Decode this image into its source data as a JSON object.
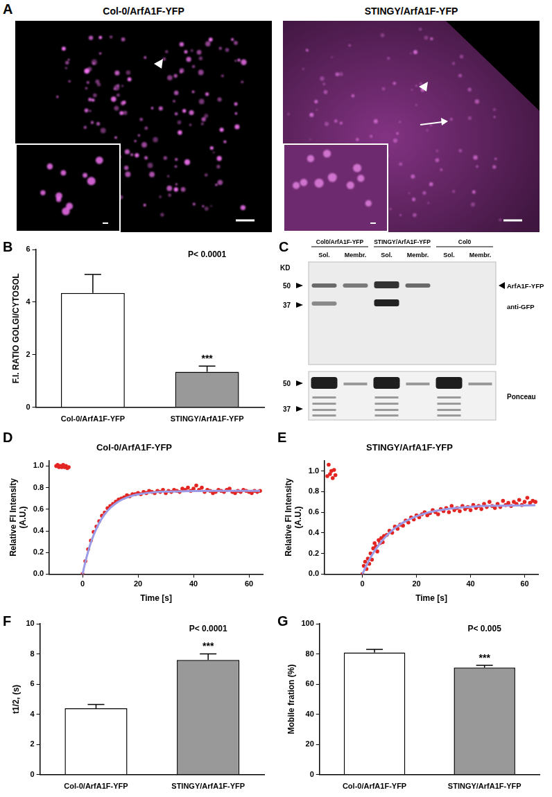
{
  "panel_A": {
    "panel_label": "A",
    "images": [
      {
        "title": "Col-0/ArfA1F-YFP"
      },
      {
        "title": "STINGY/ArfA1F-YFP"
      }
    ]
  },
  "panel_C": {
    "panel_label": "C",
    "groups": [
      "Col0/ArfA1F-YFP",
      "STINGY/ArfA1F-YFP",
      "Col0"
    ],
    "lanes": [
      "Sol.",
      "Membr.",
      "Sol.",
      "Membr.",
      "Sol.",
      "Membr."
    ],
    "unit": "KD",
    "markers": [
      50,
      37
    ],
    "band_labels": [
      "ArfA1F-YFP",
      "anti-GFP"
    ],
    "stain": "Ponceau"
  },
  "chart_data": [
    {
      "panel_label": "B",
      "type": "bar",
      "categories": [
        "Col-0/ArfA1F-YFP",
        "STINGY/ArfA1F-YFP"
      ],
      "values": [
        4.35,
        1.35
      ],
      "errors": [
        0.7,
        0.22
      ],
      "colors": [
        "#ffffff",
        "#999999"
      ],
      "y_label": "F.I. RATIO GOLGI/CYTOSOL",
      "ylim": [
        0,
        6
      ],
      "yticks": [
        0,
        2,
        4,
        6
      ],
      "grid": false,
      "annotations": [
        "P< 0.0001",
        "***"
      ]
    },
    {
      "panel_label": "D",
      "type": "scatter",
      "title": "Col-0/ArfA1F-YFP",
      "x_label": "Time [s]",
      "y_label": [
        "Relative FI Intensity",
        "(A.U.)"
      ],
      "xlim": [
        -12,
        65
      ],
      "xticks": [
        0,
        20,
        40,
        60
      ],
      "ylim": [
        0,
        1.05
      ],
      "yticks": [
        {
          "value": 0,
          "label": "0.0"
        },
        0.2,
        0.4,
        0.6,
        0.8,
        {
          "value": 1,
          "label": "1.0"
        }
      ],
      "grid": false,
      "series": [
        {
          "type": "scatter",
          "marker": "circle",
          "color": "#e32522",
          "x": [
            -9.5,
            -9,
            -8.5,
            -8,
            -7.5,
            -7,
            -6.5,
            -6,
            -5.5,
            -5,
            0,
            1,
            2,
            3,
            4,
            5,
            6,
            7,
            8,
            9,
            10,
            11,
            12,
            13,
            14,
            15,
            16,
            17,
            18,
            19,
            20,
            21,
            22,
            23,
            24,
            25,
            26,
            27,
            28,
            29,
            30,
            31,
            32,
            33,
            34,
            35,
            36,
            37,
            38,
            39,
            40,
            41,
            42,
            43,
            44,
            45,
            46,
            47,
            48,
            49,
            50,
            51,
            52,
            53,
            54,
            55,
            56,
            57,
            58,
            59,
            60,
            61,
            62,
            63,
            64
          ],
          "values": [
            1.0,
            1.01,
            0.99,
            1.0,
            0.99,
            1.01,
            0.99,
            1.0,
            0.98,
            0.99,
            0,
            0.12,
            0.23,
            0.31,
            0.39,
            0.44,
            0.49,
            0.54,
            0.57,
            0.61,
            0.63,
            0.65,
            0.67,
            0.69,
            0.7,
            0.71,
            0.73,
            0.72,
            0.74,
            0.74,
            0.75,
            0.74,
            0.76,
            0.75,
            0.77,
            0.76,
            0.75,
            0.77,
            0.76,
            0.78,
            0.75,
            0.77,
            0.76,
            0.78,
            0.77,
            0.76,
            0.79,
            0.78,
            0.8,
            0.77,
            0.79,
            0.82,
            0.78,
            0.8,
            0.76,
            0.78,
            0.77,
            0.75,
            0.76,
            0.78,
            0.77,
            0.76,
            0.78,
            0.79,
            0.76,
            0.75,
            0.77,
            0.76,
            0.78,
            0.77,
            0.76,
            0.75,
            0.77,
            0.76,
            0.77
          ]
        },
        {
          "type": "line",
          "line_style": "solid",
          "color": "#9a9ae6",
          "x": [
            0,
            1,
            2,
            3,
            4,
            5,
            6,
            8,
            10,
            12,
            14,
            16,
            18,
            20,
            25,
            30,
            40,
            50,
            64
          ],
          "values": [
            0,
            0.113,
            0.209,
            0.292,
            0.362,
            0.422,
            0.473,
            0.554,
            0.613,
            0.655,
            0.687,
            0.709,
            0.726,
            0.738,
            0.755,
            0.763,
            0.769,
            0.77,
            0.77
          ]
        }
      ]
    },
    {
      "panel_label": "E",
      "type": "scatter",
      "title": "STINGY/ArfA1F-YFP",
      "x_label": "Time [s]",
      "y_label": [
        "Relative FI Intensity",
        "(A.U.)"
      ],
      "xlim": [
        -14,
        65
      ],
      "xticks": [
        0,
        20,
        40,
        60
      ],
      "ylim": [
        0,
        1.1
      ],
      "yticks": [
        {
          "value": 0,
          "label": "0.0"
        },
        0.2,
        0.4,
        0.6,
        0.8,
        {
          "value": 1,
          "label": "1.0"
        }
      ],
      "grid": false,
      "series": [
        {
          "type": "scatter",
          "marker": "circle",
          "color": "#e32522",
          "x": [
            -13,
            -12.5,
            -12,
            -11.5,
            -11,
            -10.5,
            -10,
            0,
            0.5,
            1,
            1.5,
            2,
            2.5,
            3,
            3.5,
            4,
            4.5,
            5,
            5.5,
            6,
            6.5,
            7,
            7.5,
            8,
            9,
            10,
            11,
            12,
            13,
            14,
            15,
            16,
            17,
            18,
            19,
            20,
            21,
            22,
            23,
            24,
            25,
            26,
            27,
            28,
            29,
            30,
            31,
            32,
            33,
            34,
            35,
            36,
            37,
            38,
            39,
            40,
            41,
            42,
            43,
            44,
            45,
            46,
            47,
            48,
            49,
            50,
            51,
            52,
            53,
            54,
            55,
            56,
            57,
            58,
            59,
            60,
            61,
            62,
            63,
            64
          ],
          "values": [
            0.95,
            1.06,
            0.97,
            1.0,
            0.93,
            1.01,
            0.96,
            0,
            0.08,
            0.12,
            0.05,
            0.15,
            0.1,
            0.2,
            0.14,
            0.25,
            0.3,
            0.27,
            0.22,
            0.33,
            0.3,
            0.35,
            0.31,
            0.37,
            0.38,
            0.42,
            0.4,
            0.46,
            0.44,
            0.48,
            0.47,
            0.52,
            0.5,
            0.55,
            0.53,
            0.57,
            0.55,
            0.58,
            0.6,
            0.57,
            0.59,
            0.62,
            0.6,
            0.58,
            0.63,
            0.61,
            0.64,
            0.6,
            0.66,
            0.62,
            0.64,
            0.61,
            0.66,
            0.63,
            0.65,
            0.62,
            0.67,
            0.64,
            0.66,
            0.63,
            0.68,
            0.65,
            0.7,
            0.66,
            0.64,
            0.68,
            0.65,
            0.71,
            0.67,
            0.69,
            0.66,
            0.7,
            0.68,
            0.72,
            0.67,
            0.7,
            0.74,
            0.69,
            0.71,
            0.7
          ]
        },
        {
          "type": "line",
          "line_style": "solid",
          "color": "#9a9ae6",
          "x": [
            0,
            1,
            2,
            3,
            4,
            5,
            6,
            8,
            10,
            12,
            15,
            20,
            25,
            30,
            40,
            50,
            64
          ],
          "values": [
            0,
            0.058,
            0.111,
            0.16,
            0.204,
            0.245,
            0.281,
            0.346,
            0.4,
            0.445,
            0.499,
            0.561,
            0.601,
            0.626,
            0.653,
            0.663,
            0.668
          ]
        }
      ]
    },
    {
      "panel_label": "F",
      "type": "bar",
      "categories": [
        "Col-0/ArfA1F-YFP",
        "STINGY/ArfA1F-YFP"
      ],
      "values": [
        4.4,
        7.6
      ],
      "errors": [
        0.25,
        0.4
      ],
      "colors": [
        "#ffffff",
        "#999999"
      ],
      "y_label": "t1/2, (s)",
      "ylim": [
        0,
        10
      ],
      "yticks": [
        0,
        2,
        4,
        6,
        8,
        10
      ],
      "grid": false,
      "annotations": [
        "P< 0.0001",
        "***"
      ]
    },
    {
      "panel_label": "G",
      "type": "bar",
      "categories": [
        "Col-0/ArfA1F-YFP",
        "STINGY/ArfA1F-YFP"
      ],
      "values": [
        81,
        71
      ],
      "errors": [
        2,
        1.5
      ],
      "colors": [
        "#ffffff",
        "#999999"
      ],
      "y_label": "Mobile fration (%)",
      "ylim": [
        0,
        100
      ],
      "yticks": [
        0,
        20,
        40,
        60,
        80,
        100
      ],
      "grid": false,
      "annotations": [
        "P< 0.005",
        "***"
      ]
    }
  ]
}
